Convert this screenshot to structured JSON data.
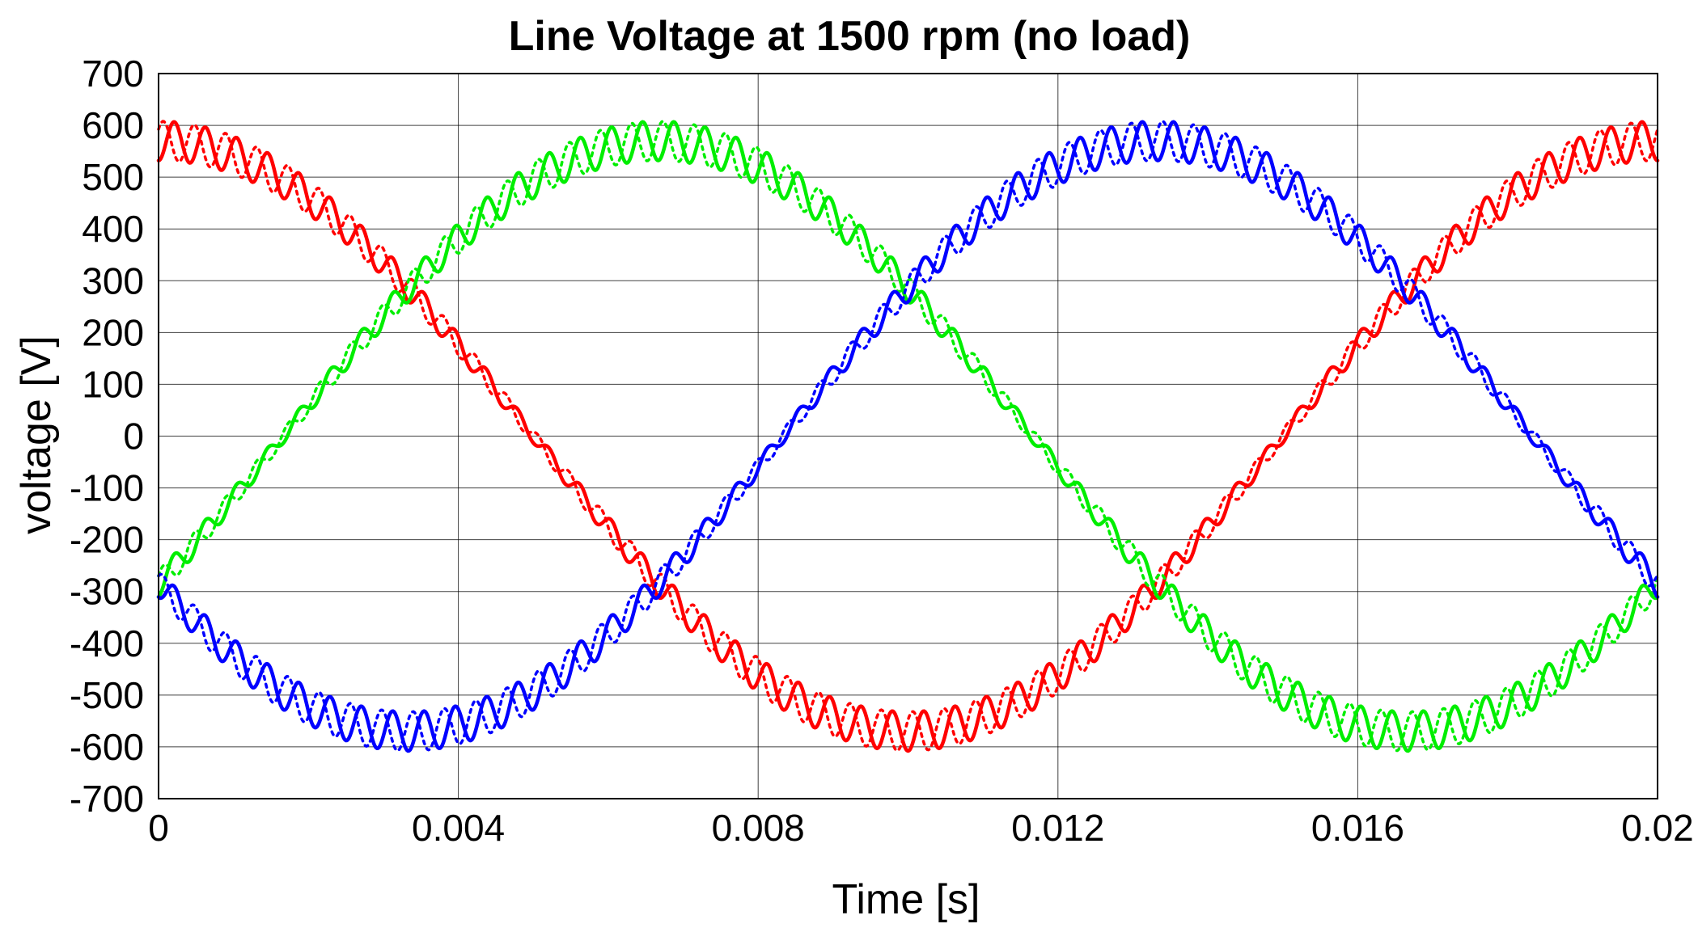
{
  "chart_data": {
    "type": "line",
    "title": "Line Voltage at 1500 rpm (no load)",
    "xlabel": "Time [s]",
    "ylabel": "voltage [V]",
    "xlim": [
      0,
      0.02
    ],
    "ylim": [
      -700,
      700
    ],
    "xticks": [
      0,
      0.004,
      0.008,
      0.012,
      0.016,
      0.02
    ],
    "xtick_labels": [
      "0",
      "0.004",
      "0.008",
      "0.012",
      "0.016",
      "0.02"
    ],
    "yticks": [
      700,
      600,
      500,
      400,
      300,
      200,
      100,
      0,
      -100,
      -200,
      -300,
      -400,
      -500,
      -600,
      -700
    ],
    "ytick_labels": [
      "700",
      "600",
      "500",
      "400",
      "300",
      "200",
      "100",
      "0",
      "-100",
      "-200",
      "-300",
      "-400",
      "-500",
      "-600",
      "-700"
    ],
    "grid": true,
    "model": {
      "fundamental_amplitude_V": 570,
      "fundamental_period_s": 0.02,
      "ripple_amplitude_V": 38,
      "ripple_cycles_per_period": 48,
      "dotted_ripple_offset_cycles": 0.35
    },
    "series": [
      {
        "color": "#ff0000",
        "style": "solid",
        "phase_deg": 90
      },
      {
        "color": "#ff0000",
        "style": "dotted",
        "phase_deg": 90
      },
      {
        "color": "#00ee00",
        "style": "solid",
        "phase_deg": -30
      },
      {
        "color": "#00ee00",
        "style": "dotted",
        "phase_deg": -30
      },
      {
        "color": "#0000ff",
        "style": "solid",
        "phase_deg": 210
      },
      {
        "color": "#0000ff",
        "style": "dotted",
        "phase_deg": 210
      }
    ]
  }
}
